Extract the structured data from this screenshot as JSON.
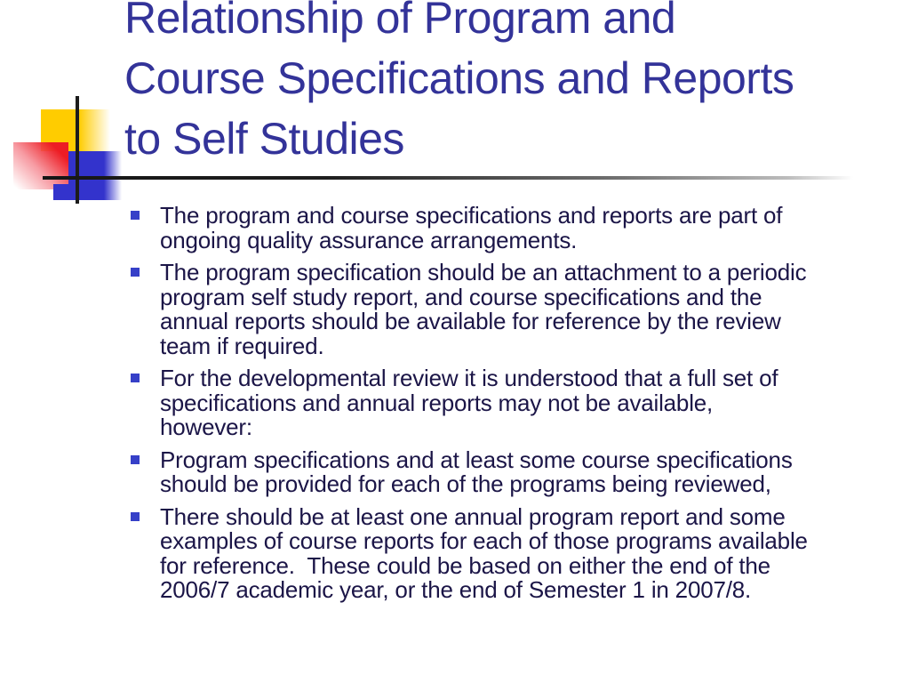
{
  "slide": {
    "title": "Relationship of Program and\nCourse Specifications and Reports\nto Self Studies",
    "bullets": [
      {
        "text": "The program and course specifications and reports are part of\nongoing quality assurance arrangements."
      },
      {
        "text": "The program specification should be an attachment to a periodic\nprogram self study report, and course specifications and the\nannual reports should be available for reference by the review\nteam if required."
      },
      {
        "text": "For the developmental review it is understood that a full set of\nspecifications and annual reports may not be available,\nhowever:"
      },
      {
        "text": "Program specifications and at least some course specifications\nshould be provided for each of the programs being reviewed,"
      },
      {
        "text": "There should be at least one annual program report and some\nexamples of course reports for each of those programs available\nfor reference.  These could be based on either the end of the\n2006/7 academic year, or the end of Semester 1 in 2007/8."
      }
    ],
    "colors": {
      "title_text": "#333399",
      "body_text": "#1b1547",
      "bullet_square": "#3640c8",
      "deco_yellow": "#ffcc00",
      "deco_red": "#ed1c24",
      "deco_blue": "#3333cc",
      "crosshair_line": "#1c1c1c"
    }
  }
}
